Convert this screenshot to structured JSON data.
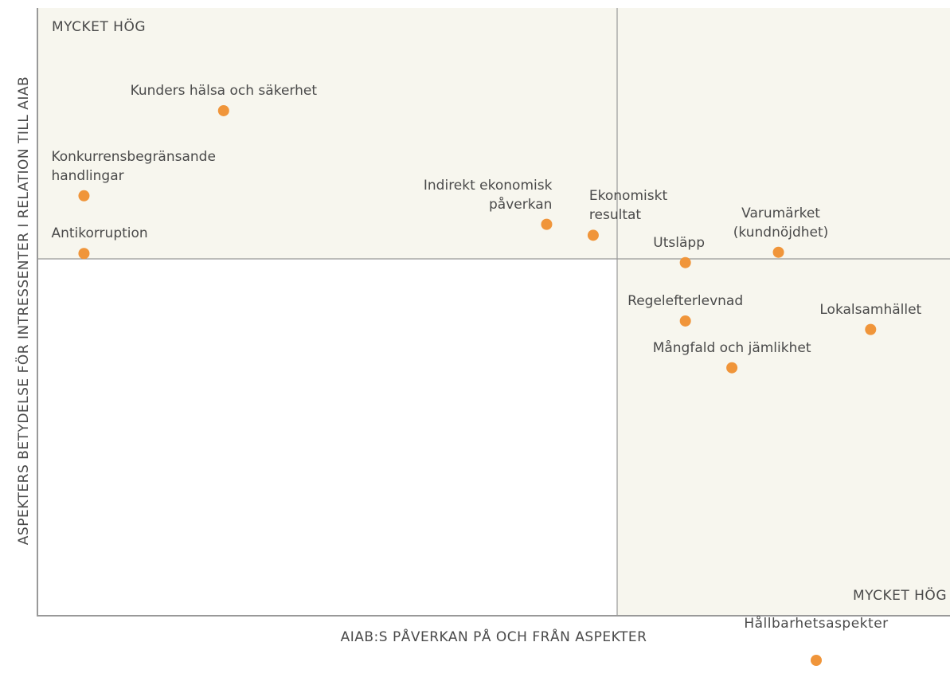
{
  "chart_data": {
    "type": "scatter",
    "x_label": "AIAB:S PÅVERKAN PÅ OCH FRÅN ASPEKTER",
    "y_label": "ASPEKTERS BETYDELSE FÖR INTRESSENTER I RELATION TILL AIAB",
    "annotations": [
      "MYCKET HÖG",
      "MYCKET HÖG"
    ],
    "xlim": [
      0,
      100
    ],
    "ylim": [
      0,
      100
    ],
    "series": [
      {
        "name": "Hållbarhetsaspekter",
        "color": "#f0953a",
        "labels": [
          "Kunders hälsa och säkerhet",
          "Konkurrensbegränsande\nhandlingar",
          "Antikorruption",
          "Indirekt ekonomisk\npåverkan",
          "Ekonomiskt\nresultat",
          "Utsläpp",
          "Varumärket\n(kundnöjdhet)",
          "Regelefterlevnad",
          "Lokalsamhället",
          "Mångfald och jämlikhet"
        ],
        "x": [
          20.4,
          5.1,
          5.1,
          55.8,
          60.9,
          71.0,
          81.2,
          71.0,
          91.3,
          76.1
        ],
        "values": [
          83.1,
          69.1,
          59.6,
          64.4,
          62.6,
          58.1,
          59.8,
          48.5,
          47.1,
          40.8
        ]
      }
    ]
  }
}
